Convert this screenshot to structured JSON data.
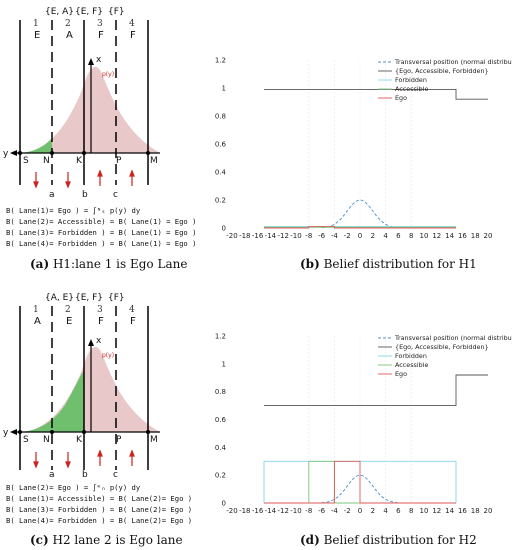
{
  "panels": {
    "a": {
      "sets": [
        "{E, A}",
        "{E, F}",
        "{F}"
      ],
      "lane_numbers": [
        "1",
        "2",
        "3",
        "4"
      ],
      "lane_letters": [
        "E",
        "A",
        "F",
        "F"
      ],
      "points": {
        "y": "y",
        "x": "x",
        "py": "p(y)",
        "S": "S",
        "N": "N",
        "K": "K",
        "P": "P",
        "M": "M",
        "a": "a",
        "b": "b",
        "c": "c"
      },
      "equations": [
        "B( Lane(1)= Ego ) = ∫ᴺₛ p(y) dy",
        "B( Lane(2)= Accessible) = B( Lane(1) = Ego )",
        "B( Lane(3)= Forbidden ) = B( Lane(1) = Ego )",
        "B( Lane(4)= Forbidden ) = B( Lane(1) = Ego )"
      ],
      "caption_letter": "(a)",
      "caption_text": " H1:lane 1 is Ego Lane"
    },
    "c": {
      "sets": [
        "{A, E}",
        "{E, F}",
        "{F}"
      ],
      "lane_numbers": [
        "1",
        "2",
        "3",
        "4"
      ],
      "lane_letters": [
        "A",
        "E",
        "F",
        "F"
      ],
      "points": {
        "y": "y",
        "x": "x",
        "py": "p(y)",
        "S": "S",
        "N": "N",
        "K": "K",
        "P": "P",
        "M": "M",
        "a": "a",
        "b": "b",
        "c": "c"
      },
      "equations": [
        "B( Lane(2)= Ego ) = ∫ᴷₙ p(y) dy",
        "B( Lane(1)= Accessible) = B( Lane(2)= Ego )",
        "B( Lane(3)= Forbidden ) = B( Lane(2)= Ego )",
        "B( Lane(4)= Forbidden ) = B( Lane(2)= Ego )"
      ],
      "caption_letter": "(c)",
      "caption_text": " H2 lane 2 is Ego lane"
    },
    "b": {
      "caption_letter": "(b)",
      "caption_text": " Belief distribution for H1"
    },
    "d": {
      "caption_letter": "(d)",
      "caption_text": " Belief distribution for H2"
    }
  },
  "colors": {
    "gauss_fill": "#e8c8c8",
    "ego_region": "#6fbf6f",
    "arrow_red": "#d21f1f",
    "transversal": "#4a90c8",
    "ego_accessible_forbidden": "#555555",
    "forbidden": "#7fd6e8",
    "accessible": "#7ac87a",
    "ego": "#e05a5a"
  },
  "chart_data": [
    {
      "type": "line",
      "panel": "b",
      "title": "",
      "xlabel": "",
      "ylabel": "",
      "xlim": [
        -20,
        20
      ],
      "ylim": [
        0,
        1.2
      ],
      "x_ticks": [
        "-20",
        "-18",
        "-16",
        "-14",
        "-12",
        "-10",
        "-8",
        "-6",
        "-4",
        "-2",
        "0",
        "2",
        "4",
        "6",
        "8",
        "10",
        "12",
        "14",
        "16",
        "18",
        "20"
      ],
      "y_ticks": [
        "0",
        "0.2",
        "0.4",
        "0.6",
        "0.8",
        "1",
        "1.2"
      ],
      "legend": [
        "Transversal position (normal distribution)",
        "{Ego, Accessible, Forbidden}",
        "Forbidden",
        "Accessible",
        "Ego"
      ],
      "legend_position": "top-right",
      "series": [
        {
          "name": "Transversal position (normal distribution)",
          "style": "dashed",
          "x": [
            -6,
            -5,
            -4,
            -3,
            -2,
            -1,
            0,
            1,
            2,
            3,
            4,
            5,
            6
          ],
          "y": [
            0.0,
            0.005,
            0.02,
            0.05,
            0.1,
            0.16,
            0.2,
            0.16,
            0.1,
            0.05,
            0.02,
            0.005,
            0.0
          ]
        },
        {
          "name": "{Ego, Accessible, Forbidden}",
          "x": [
            -15,
            15,
            15,
            20
          ],
          "y": [
            0.99,
            0.99,
            0.92,
            0.92
          ]
        },
        {
          "name": "Forbidden",
          "x": [
            -15,
            15
          ],
          "y": [
            0.01,
            0.01
          ]
        },
        {
          "name": "Accessible",
          "x": [
            -15,
            15
          ],
          "y": [
            0.005,
            0.005
          ]
        },
        {
          "name": "Ego",
          "x": [
            -15,
            -8,
            -8,
            -4,
            -4,
            15
          ],
          "y": [
            0.0,
            0.0,
            0.01,
            0.01,
            0.0,
            0.0
          ]
        }
      ]
    },
    {
      "type": "line",
      "panel": "d",
      "title": "",
      "xlabel": "",
      "ylabel": "",
      "xlim": [
        -20,
        20
      ],
      "ylim": [
        0,
        1.2
      ],
      "x_ticks": [
        "-20",
        "-18",
        "-16",
        "-14",
        "-12",
        "-10",
        "-8",
        "-6",
        "-4",
        "-2",
        "0",
        "2",
        "4",
        "6",
        "8",
        "10",
        "12",
        "14",
        "16",
        "18",
        "20"
      ],
      "y_ticks": [
        "0",
        "0.2",
        "0.4",
        "0.6",
        "0.8",
        "1",
        "1.2"
      ],
      "legend": [
        "Transversal position (normal distribution)",
        "{Ego, Accessible, Forbidden}",
        "Forbidden",
        "Accessible",
        "Ego"
      ],
      "legend_position": "top-right",
      "series": [
        {
          "name": "Transversal position (normal distribution)",
          "style": "dashed",
          "x": [
            -6,
            -5,
            -4,
            -3,
            -2,
            -1,
            0,
            1,
            2,
            3,
            4,
            5,
            6
          ],
          "y": [
            0.0,
            0.005,
            0.02,
            0.05,
            0.1,
            0.16,
            0.2,
            0.16,
            0.1,
            0.05,
            0.02,
            0.005,
            0.0
          ]
        },
        {
          "name": "{Ego, Accessible, Forbidden}",
          "x": [
            -15,
            15,
            15,
            20
          ],
          "y": [
            0.7,
            0.7,
            0.92,
            0.92
          ]
        },
        {
          "name": "Forbidden",
          "x": [
            -15,
            -15,
            15,
            15
          ],
          "y": [
            0.0,
            0.3,
            0.3,
            0.0
          ]
        },
        {
          "name": "Accessible",
          "x": [
            -15,
            -8,
            -8,
            -4,
            -4,
            15
          ],
          "y": [
            0.0,
            0.0,
            0.3,
            0.3,
            0.0,
            0.0
          ]
        },
        {
          "name": "Ego",
          "x": [
            -15,
            -4,
            -4,
            0,
            0,
            15
          ],
          "y": [
            0.0,
            0.0,
            0.3,
            0.3,
            0.0,
            0.0
          ]
        }
      ]
    }
  ]
}
